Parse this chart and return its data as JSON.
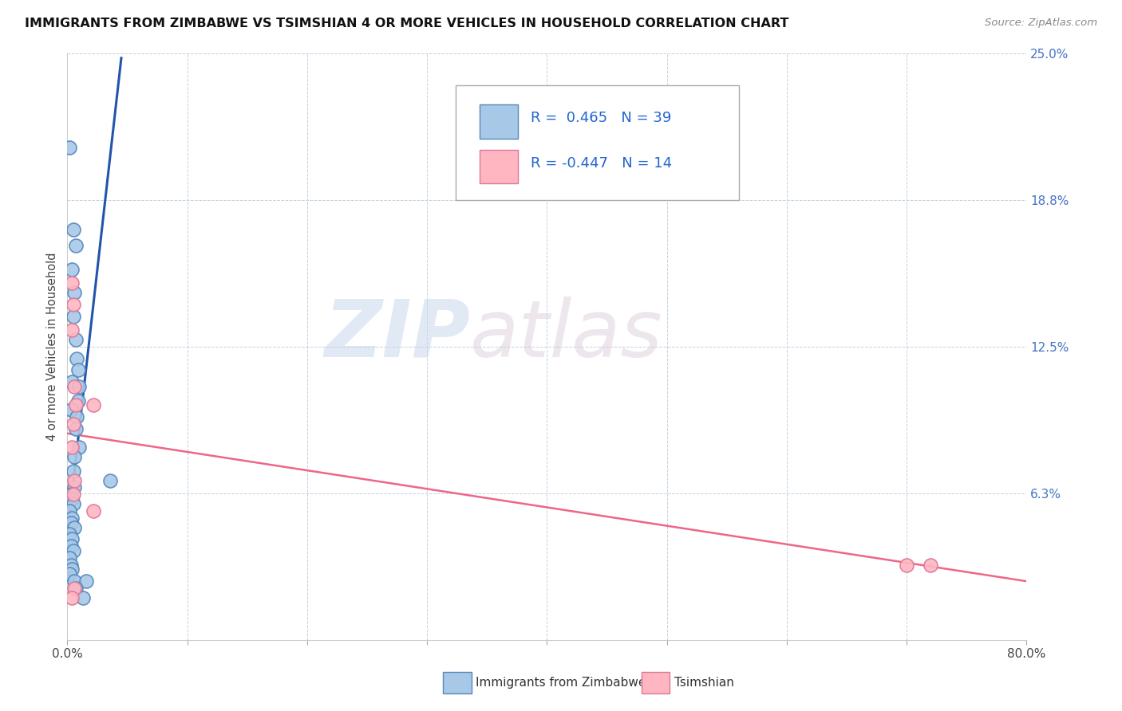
{
  "title": "IMMIGRANTS FROM ZIMBABWE VS TSIMSHIAN 4 OR MORE VEHICLES IN HOUSEHOLD CORRELATION CHART",
  "source_text": "Source: ZipAtlas.com",
  "ylabel": "4 or more Vehicles in Household",
  "xlim": [
    0.0,
    0.8
  ],
  "ylim": [
    0.0,
    0.25
  ],
  "xtick_positions": [
    0.0,
    0.1,
    0.2,
    0.3,
    0.4,
    0.5,
    0.6,
    0.7,
    0.8
  ],
  "xtick_labels": [
    "0.0%",
    "",
    "",
    "",
    "",
    "",
    "",
    "",
    "80.0%"
  ],
  "ytick_positions": [
    0.0,
    0.0625,
    0.125,
    0.1875,
    0.25
  ],
  "ytick_labels": [
    "",
    "6.3%",
    "12.5%",
    "18.8%",
    "25.0%"
  ],
  "watermark_zip": "ZIP",
  "watermark_atlas": "atlas",
  "color_blue": "#a8c8e8",
  "color_pink": "#ffb6c1",
  "edge_blue": "#5588bb",
  "edge_pink": "#dd7799",
  "line_blue": "#2255aa",
  "line_pink": "#ee6688",
  "legend_label1": "Immigrants from Zimbabwe",
  "legend_label2": "Tsimshian",
  "blue_dots": [
    [
      0.002,
      0.21
    ],
    [
      0.005,
      0.175
    ],
    [
      0.007,
      0.168
    ],
    [
      0.004,
      0.158
    ],
    [
      0.006,
      0.148
    ],
    [
      0.005,
      0.138
    ],
    [
      0.007,
      0.128
    ],
    [
      0.008,
      0.12
    ],
    [
      0.009,
      0.115
    ],
    [
      0.004,
      0.11
    ],
    [
      0.01,
      0.108
    ],
    [
      0.009,
      0.102
    ],
    [
      0.003,
      0.098
    ],
    [
      0.008,
      0.095
    ],
    [
      0.007,
      0.09
    ],
    [
      0.01,
      0.082
    ],
    [
      0.006,
      0.078
    ],
    [
      0.005,
      0.072
    ],
    [
      0.036,
      0.068
    ],
    [
      0.006,
      0.065
    ],
    [
      0.003,
      0.062
    ],
    [
      0.004,
      0.06
    ],
    [
      0.005,
      0.058
    ],
    [
      0.002,
      0.055
    ],
    [
      0.004,
      0.052
    ],
    [
      0.003,
      0.05
    ],
    [
      0.006,
      0.048
    ],
    [
      0.002,
      0.045
    ],
    [
      0.004,
      0.043
    ],
    [
      0.003,
      0.04
    ],
    [
      0.005,
      0.038
    ],
    [
      0.002,
      0.035
    ],
    [
      0.003,
      0.032
    ],
    [
      0.004,
      0.03
    ],
    [
      0.002,
      0.028
    ],
    [
      0.006,
      0.025
    ],
    [
      0.016,
      0.025
    ],
    [
      0.007,
      0.022
    ],
    [
      0.013,
      0.018
    ]
  ],
  "pink_dots": [
    [
      0.004,
      0.152
    ],
    [
      0.005,
      0.143
    ],
    [
      0.004,
      0.132
    ],
    [
      0.006,
      0.108
    ],
    [
      0.007,
      0.1
    ],
    [
      0.005,
      0.092
    ],
    [
      0.004,
      0.082
    ],
    [
      0.006,
      0.068
    ],
    [
      0.005,
      0.062
    ],
    [
      0.022,
      0.055
    ],
    [
      0.022,
      0.1
    ],
    [
      0.7,
      0.032
    ],
    [
      0.72,
      0.032
    ],
    [
      0.006,
      0.022
    ],
    [
      0.004,
      0.018
    ]
  ],
  "blue_line_x": [
    0.0,
    0.045
  ],
  "blue_line_y": [
    0.045,
    0.248
  ],
  "pink_line_x": [
    0.0,
    0.8
  ],
  "pink_line_y": [
    0.088,
    0.025
  ]
}
